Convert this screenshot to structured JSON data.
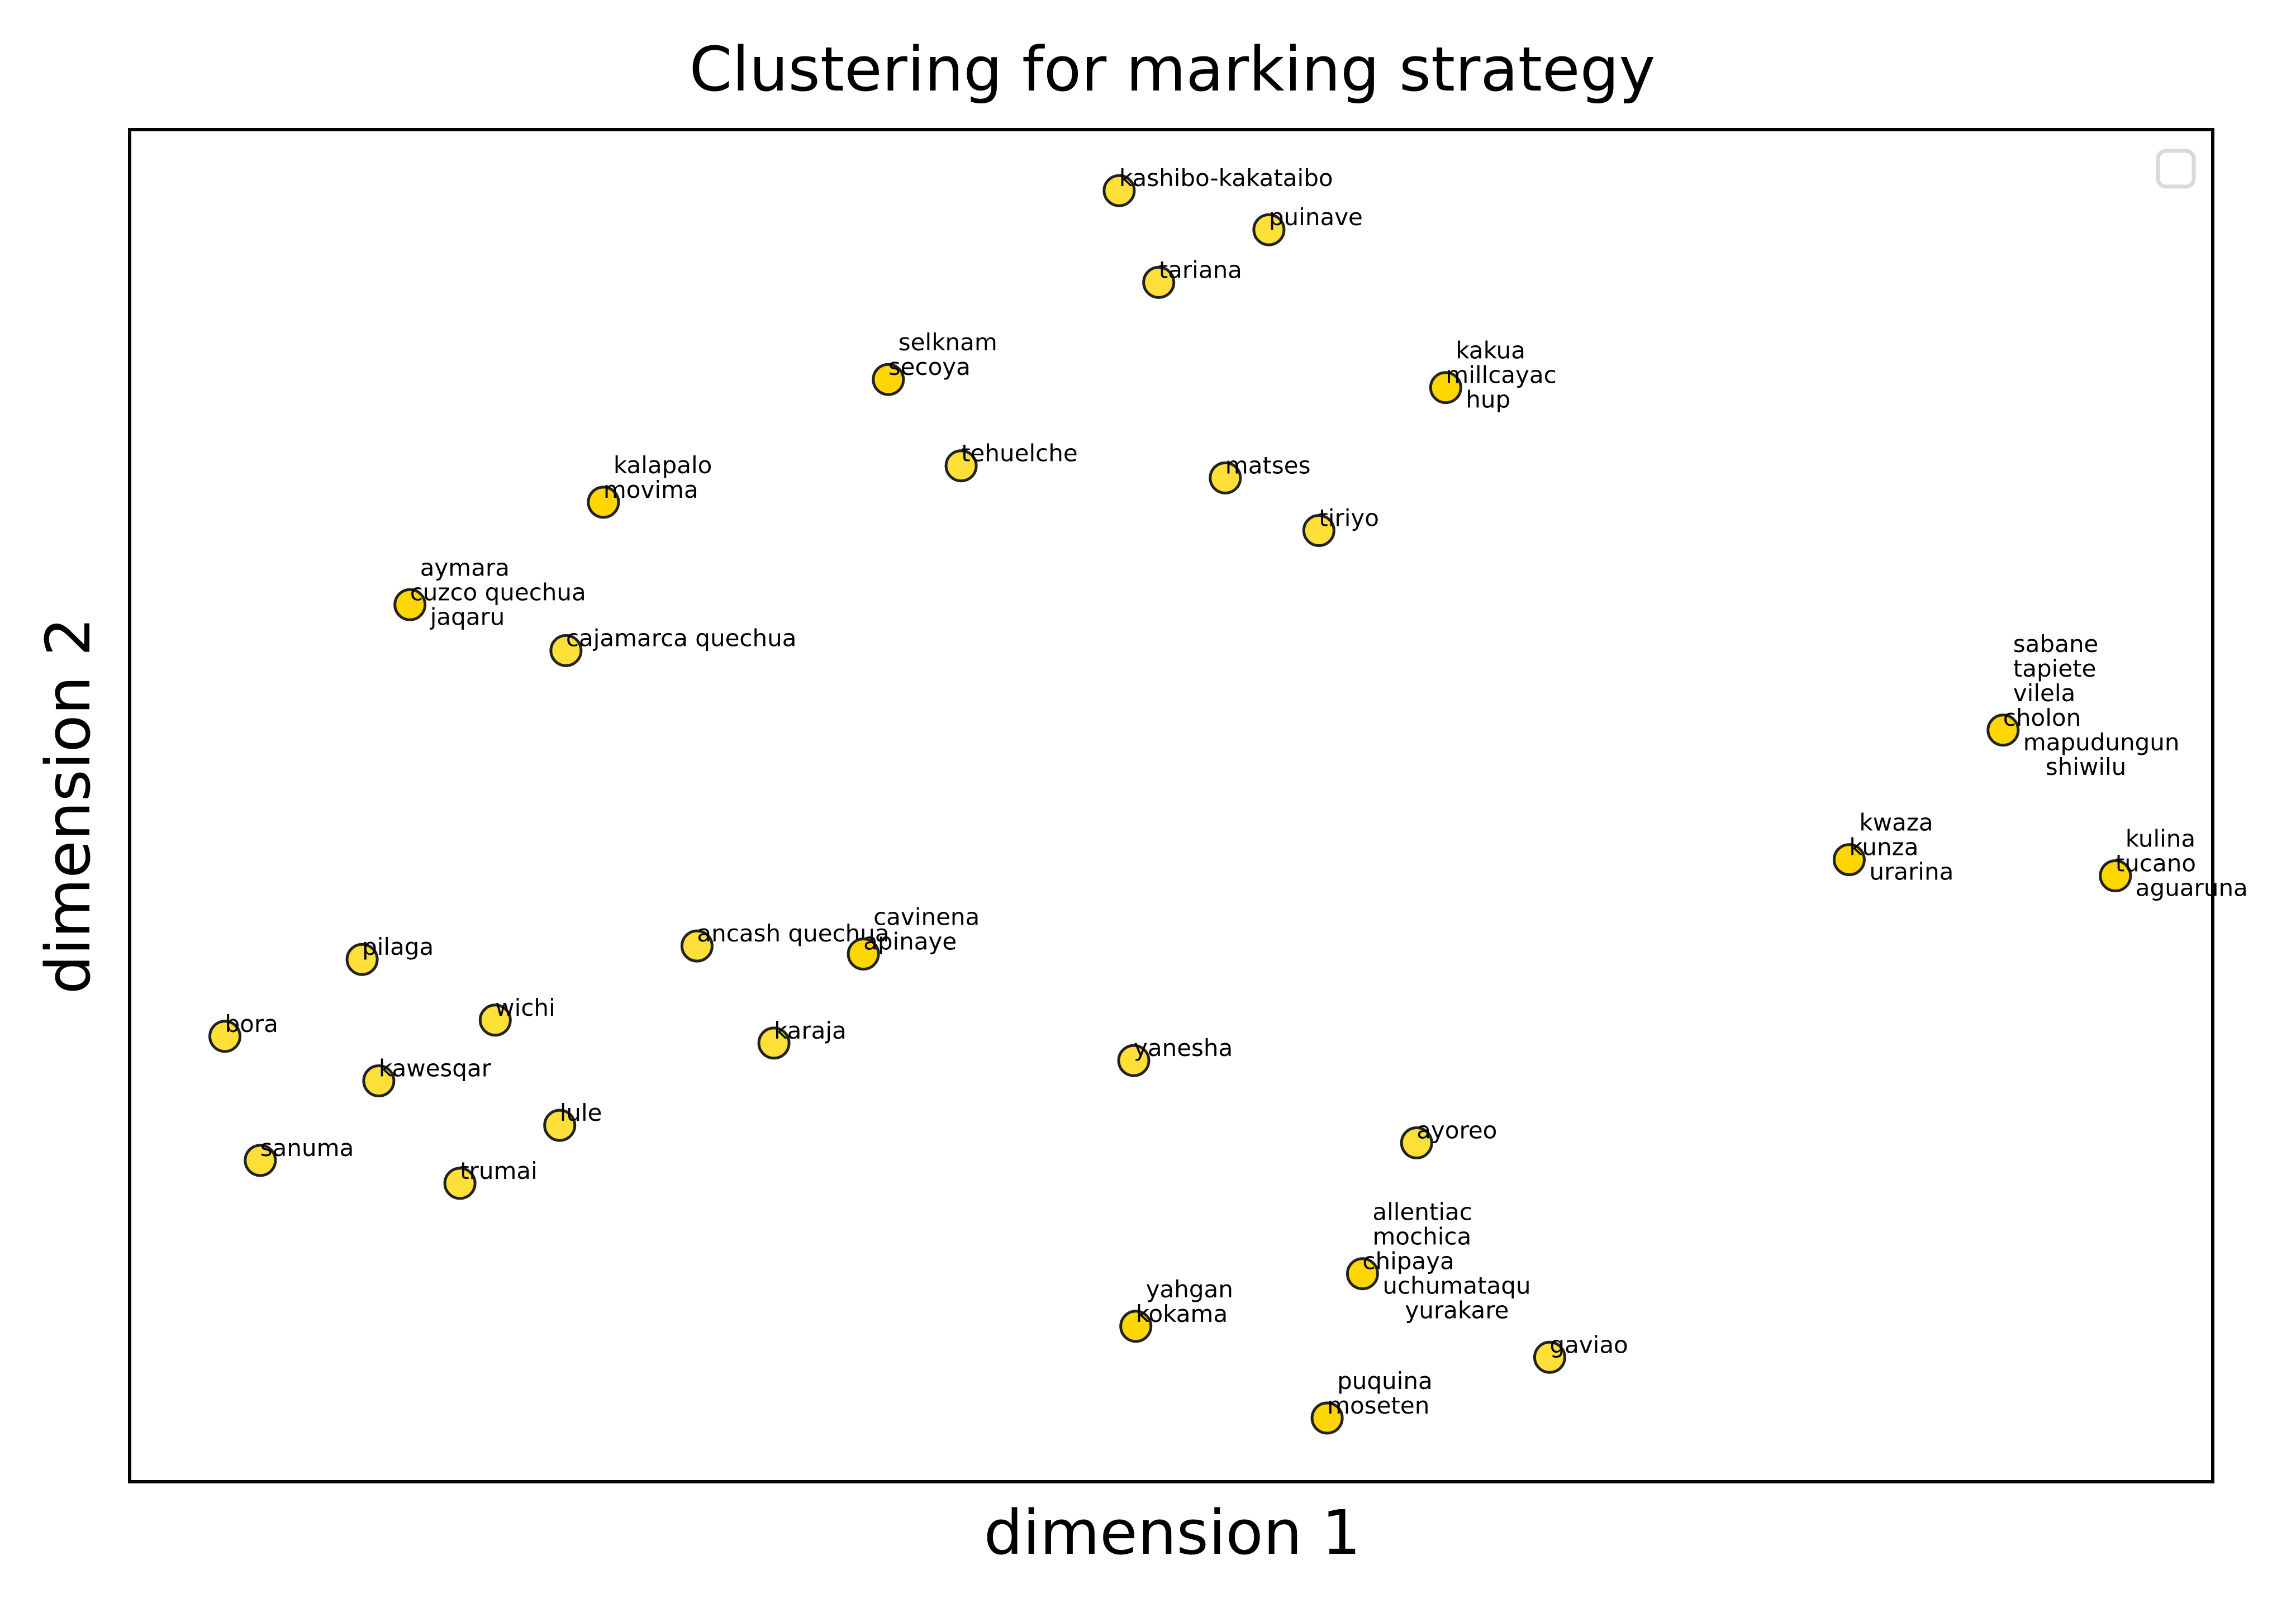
{
  "chart_data": {
    "type": "scatter",
    "title": "Clustering for marking strategy",
    "xlabel": "dimension 1",
    "ylabel": "dimension 2",
    "xticks": [],
    "yticks": [],
    "grid": false,
    "legend": {
      "placement": "top-right",
      "entries": []
    },
    "xlim": [
      0,
      100
    ],
    "ylim": [
      0,
      100
    ],
    "marker_color": "#FFD700",
    "marker_edge_color": "#222222",
    "points": [
      {
        "x": 47.5,
        "y": 95.6,
        "labels": [
          "kashibo-kakataibo"
        ]
      },
      {
        "x": 54.7,
        "y": 92.7,
        "labels": [
          "puinave"
        ]
      },
      {
        "x": 49.4,
        "y": 88.8,
        "labels": [
          "tariana"
        ]
      },
      {
        "x": 36.4,
        "y": 81.6,
        "labels": [
          "selknam",
          "secoya"
        ]
      },
      {
        "x": 63.2,
        "y": 81.0,
        "labels": [
          "kakua",
          "millcayac",
          "hup"
        ]
      },
      {
        "x": 39.9,
        "y": 75.2,
        "labels": [
          "tehuelche"
        ]
      },
      {
        "x": 52.6,
        "y": 74.3,
        "labels": [
          "matses"
        ]
      },
      {
        "x": 22.7,
        "y": 72.5,
        "labels": [
          "kalapalo",
          "movima"
        ]
      },
      {
        "x": 57.1,
        "y": 70.4,
        "labels": [
          "tiriyo"
        ]
      },
      {
        "x": 13.4,
        "y": 64.9,
        "labels": [
          "aymara",
          "cuzco quechua",
          "jaqaru"
        ]
      },
      {
        "x": 20.9,
        "y": 61.5,
        "labels": [
          "cajamarca quechua"
        ]
      },
      {
        "x": 90.0,
        "y": 55.6,
        "labels": [
          "sabane",
          "tapiete",
          "vilela",
          "cholon",
          "mapudungun",
          "shiwilu"
        ]
      },
      {
        "x": 82.6,
        "y": 46.0,
        "labels": [
          "kwaza",
          "kunza",
          "urarina"
        ]
      },
      {
        "x": 95.4,
        "y": 44.8,
        "labels": [
          "kulina",
          "tucano",
          "aguaruna"
        ]
      },
      {
        "x": 27.2,
        "y": 39.6,
        "labels": [
          "ancash quechua"
        ]
      },
      {
        "x": 35.2,
        "y": 39.0,
        "labels": [
          "cavinena",
          "apinaye"
        ]
      },
      {
        "x": 11.1,
        "y": 38.6,
        "labels": [
          "pilaga"
        ]
      },
      {
        "x": 17.5,
        "y": 34.1,
        "labels": [
          "wichi"
        ]
      },
      {
        "x": 4.5,
        "y": 32.9,
        "labels": [
          "bora"
        ]
      },
      {
        "x": 30.9,
        "y": 32.4,
        "labels": [
          "karaja"
        ]
      },
      {
        "x": 48.2,
        "y": 31.1,
        "labels": [
          "yanesha"
        ]
      },
      {
        "x": 11.9,
        "y": 29.6,
        "labels": [
          "kawesqar"
        ]
      },
      {
        "x": 20.6,
        "y": 26.3,
        "labels": [
          "lule"
        ]
      },
      {
        "x": 61.8,
        "y": 25.0,
        "labels": [
          "ayoreo"
        ]
      },
      {
        "x": 6.2,
        "y": 23.7,
        "labels": [
          "sanuma"
        ]
      },
      {
        "x": 15.8,
        "y": 22.0,
        "labels": [
          "trumai"
        ]
      },
      {
        "x": 59.2,
        "y": 15.3,
        "labels": [
          "allentiac",
          "mochica",
          "chipaya",
          "uchumataqu",
          "yurakare"
        ]
      },
      {
        "x": 48.3,
        "y": 11.4,
        "labels": [
          "yahgan",
          "kokama"
        ]
      },
      {
        "x": 68.2,
        "y": 9.1,
        "labels": [
          "gaviao"
        ]
      },
      {
        "x": 57.5,
        "y": 4.6,
        "labels": [
          "puquina",
          "moseten"
        ]
      }
    ]
  }
}
